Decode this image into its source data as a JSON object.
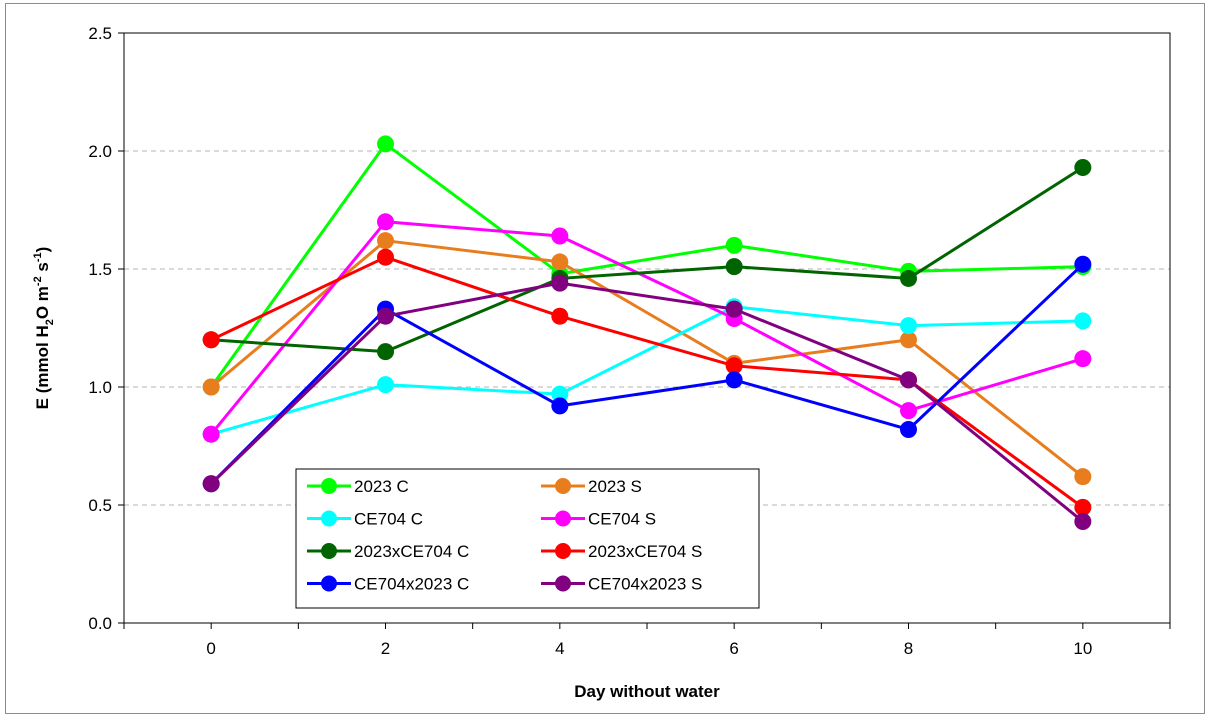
{
  "chart_data": {
    "type": "line",
    "xlabel": "Day without water",
    "ylabel_parts": {
      "main": "E (mmol H",
      "sub": "2",
      "mid": "O m",
      "sup1": "-2",
      "mid2": " s",
      "sup2": "-1",
      "end": ")"
    },
    "x": [
      0,
      2,
      4,
      6,
      8,
      10
    ],
    "x_ticks": [
      "0",
      "2",
      "4",
      "6",
      "8",
      "10"
    ],
    "y_ticks": [
      "0.0",
      "0.5",
      "1.0",
      "1.5",
      "2.0",
      "2.5"
    ],
    "ylim": [
      0,
      2.5
    ],
    "grid": "horizontal dashed",
    "legend_placement": "bottom-left",
    "series": [
      {
        "name": "2023 C",
        "color": "#00ff00",
        "values": [
          1.0,
          2.03,
          1.48,
          1.6,
          1.49,
          1.51
        ]
      },
      {
        "name": "2023 S",
        "color": "#e87d1e",
        "values": [
          1.0,
          1.62,
          1.53,
          1.1,
          1.2,
          0.62
        ]
      },
      {
        "name": "CE704 C",
        "color": "#00ffff",
        "values": [
          0.8,
          1.01,
          0.97,
          1.34,
          1.26,
          1.28
        ]
      },
      {
        "name": "CE704 S",
        "color": "#ff00ff",
        "values": [
          0.8,
          1.7,
          1.64,
          1.29,
          0.9,
          1.12
        ]
      },
      {
        "name": "2023xCE704 C",
        "color": "#006400",
        "values": [
          1.2,
          1.15,
          1.46,
          1.51,
          1.46,
          1.93
        ]
      },
      {
        "name": "2023xCE704 S",
        "color": "#ff0000",
        "values": [
          1.2,
          1.55,
          1.3,
          1.09,
          1.03,
          0.49
        ]
      },
      {
        "name": "CE704x2023 C",
        "color": "#0000ff",
        "values": [
          0.59,
          1.33,
          0.92,
          1.03,
          0.82,
          1.52
        ]
      },
      {
        "name": "CE704x2023 S",
        "color": "#800080",
        "values": [
          0.59,
          1.3,
          1.44,
          1.33,
          1.03,
          0.43
        ]
      }
    ]
  }
}
